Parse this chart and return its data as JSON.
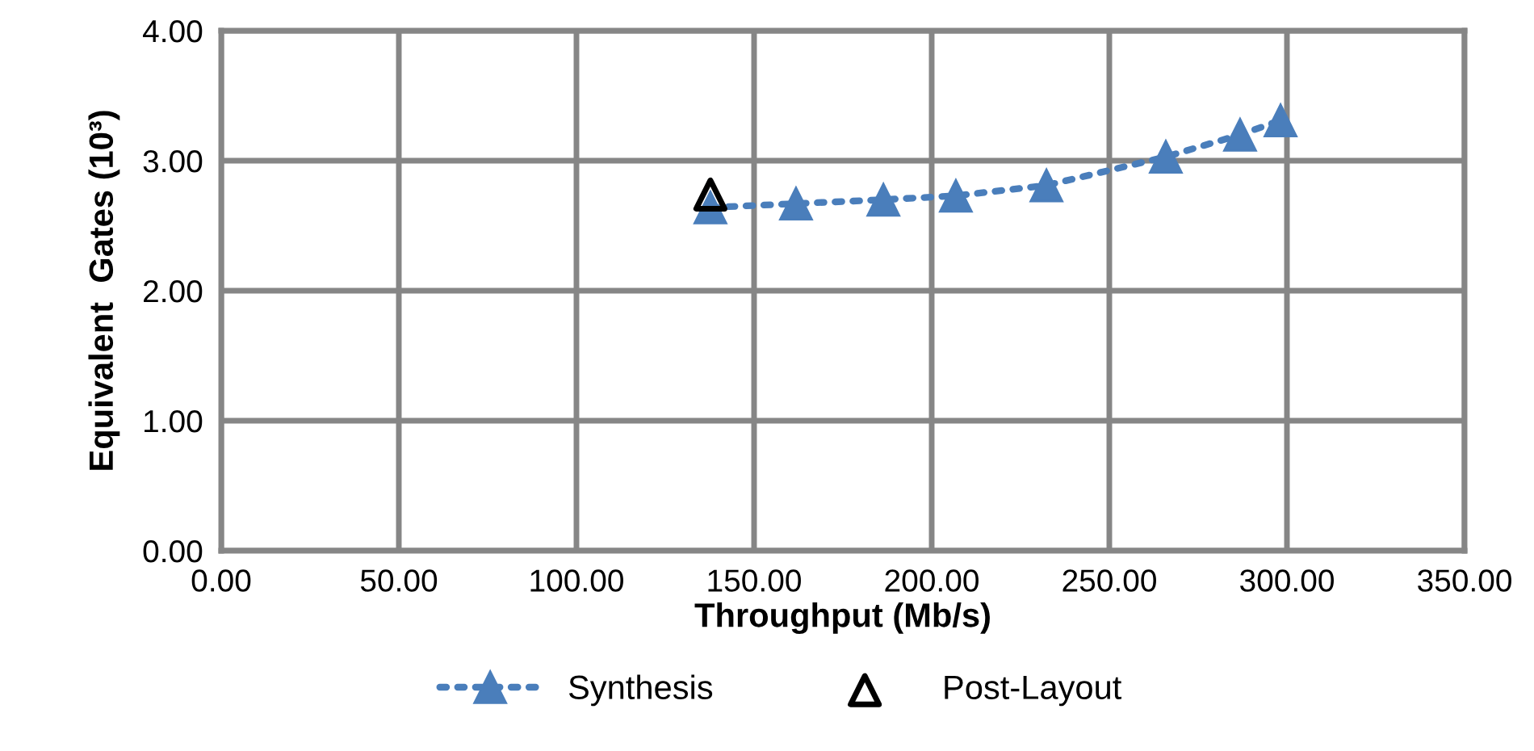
{
  "chart_data": {
    "type": "line",
    "xlabel": "Throughput (Mb/s)",
    "ylabel": "Equivalent  Gates (10³)",
    "xlim": [
      0,
      350
    ],
    "xticks": [
      {
        "value": 0,
        "label": "0.00"
      },
      {
        "value": 50,
        "label": "50.00"
      },
      {
        "value": 100,
        "label": "100.00"
      },
      {
        "value": 150,
        "label": "150.00"
      },
      {
        "value": 200,
        "label": "200.00"
      },
      {
        "value": 250,
        "label": "250.00"
      },
      {
        "value": 300,
        "label": "300.00"
      },
      {
        "value": 350,
        "label": "350.00"
      }
    ],
    "ylim": [
      0,
      4
    ],
    "yticks": [
      {
        "value": 0,
        "label": "0.00"
      },
      {
        "value": 1,
        "label": "1.00"
      },
      {
        "value": 2,
        "label": "2.00"
      },
      {
        "value": 3,
        "label": "3.00"
      },
      {
        "value": 4,
        "label": "4.00"
      }
    ],
    "grid": true,
    "legend": "bottom",
    "marker": "triangle",
    "series": [
      {
        "name": "Synthesis",
        "color": "#4a7ebb",
        "line_style": "dotted",
        "x": [
          137.7,
          161.8,
          186.4,
          206.8,
          232.3,
          265.9,
          286.8,
          298.2
        ],
        "values": [
          2.64,
          2.67,
          2.7,
          2.73,
          2.81,
          3.03,
          3.2,
          3.31
        ]
      },
      {
        "name": "Post-Layout",
        "type": "scatter",
        "color": "#000000",
        "x": [
          137.7
        ],
        "values": [
          2.74
        ]
      }
    ]
  }
}
